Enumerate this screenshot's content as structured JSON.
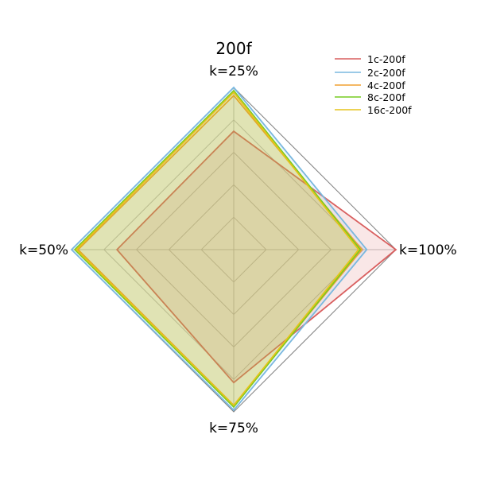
{
  "chart_data": {
    "type": "radar",
    "title": "200f",
    "axes": [
      "k=25%",
      "k=100%",
      "k=75%",
      "k=50%"
    ],
    "rmax": 1.0,
    "grid_levels": [
      0.2,
      0.4,
      0.6,
      0.8
    ],
    "grid": true,
    "legend_position": "top-right",
    "series": [
      {
        "name": "1c-200f",
        "color": "#d95f5f",
        "values": [
          0.73,
          1.0,
          0.82,
          0.72
        ]
      },
      {
        "name": "2c-200f",
        "color": "#7ab8df",
        "values": [
          1.0,
          0.82,
          0.99,
          1.0
        ]
      },
      {
        "name": "4c-200f",
        "color": "#f0a030",
        "values": [
          0.95,
          0.79,
          0.96,
          0.96
        ]
      },
      {
        "name": "8c-200f",
        "color": "#77cc22",
        "values": [
          0.98,
          0.78,
          0.97,
          0.98
        ]
      },
      {
        "name": "16c-200f",
        "color": "#e6c31a",
        "values": [
          0.97,
          0.77,
          0.96,
          0.97
        ]
      }
    ]
  },
  "colors": {
    "outer_frame": "#808080",
    "grid": "#bfbfbf"
  }
}
